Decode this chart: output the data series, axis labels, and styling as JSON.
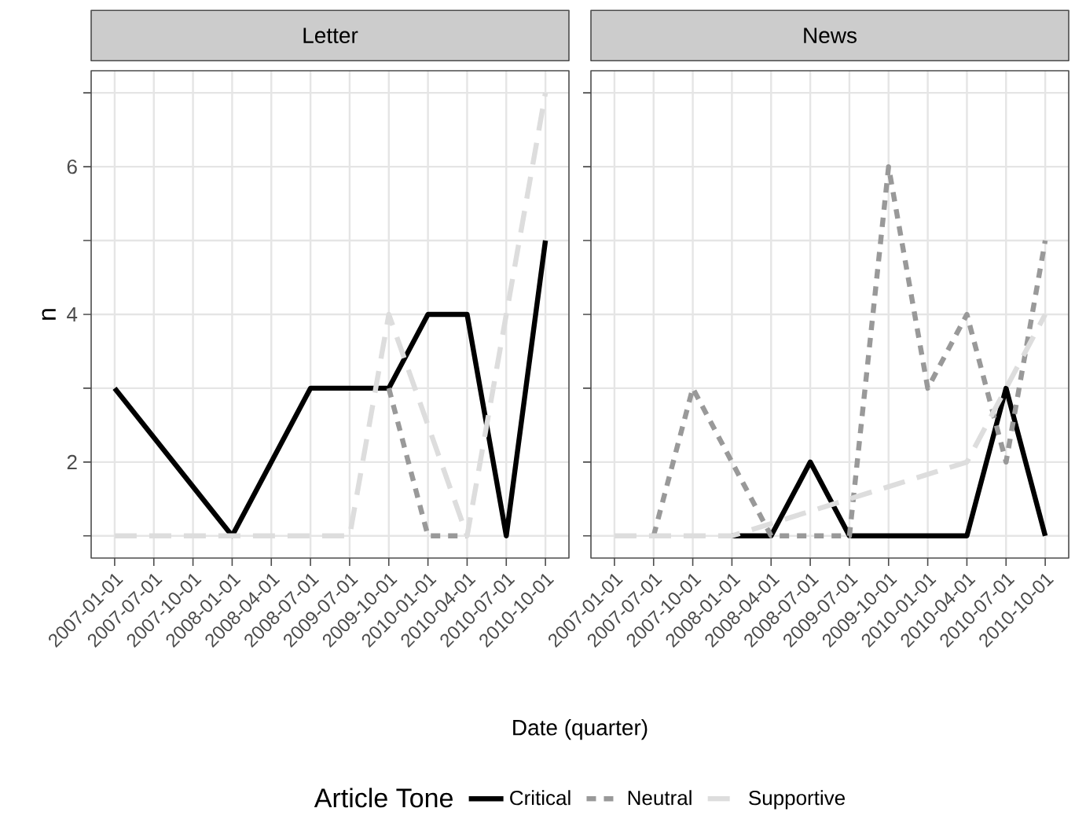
{
  "chart_data": [
    {
      "type": "line",
      "title": "Letter",
      "xlabel": "Date (quarter)",
      "ylabel": "n",
      "legend_title": "Article Tone",
      "legend": "bottom",
      "grid": true,
      "categories": [
        "2007-01-01",
        "2007-07-01",
        "2007-10-01",
        "2008-01-01",
        "2008-04-01",
        "2008-07-01",
        "2009-07-01",
        "2009-10-01",
        "2010-01-01",
        "2010-04-01",
        "2010-07-01",
        "2010-10-01"
      ],
      "ylim": [
        0.7,
        7.3
      ],
      "yticks": [
        {
          "value": 1,
          "label": null
        },
        2,
        {
          "value": 3,
          "label": null
        },
        4,
        {
          "value": 5,
          "label": null
        },
        6,
        {
          "value": 7,
          "label": null
        }
      ],
      "series": [
        {
          "name": "Critical",
          "color": "#000000",
          "line_style": "solid",
          "values": [
            3,
            null,
            null,
            1,
            null,
            3,
            3,
            3,
            4,
            4,
            1,
            5
          ]
        },
        {
          "name": "Neutral",
          "color": "#999999",
          "line_style": "dotted",
          "values": [
            null,
            null,
            null,
            null,
            null,
            null,
            null,
            3,
            1,
            1,
            null,
            null
          ]
        },
        {
          "name": "Supportive",
          "color": "#dddddd",
          "line_style": "dashed",
          "values": [
            1,
            1,
            1,
            1,
            1,
            1,
            1,
            4,
            null,
            1,
            null,
            7
          ]
        }
      ]
    },
    {
      "type": "line",
      "title": "News",
      "grid": true,
      "tick_labels": "x",
      "categories": [
        "2007-01-01",
        "2007-07-01",
        "2007-10-01",
        "2008-01-01",
        "2008-04-01",
        "2008-07-01",
        "2009-07-01",
        "2009-10-01",
        "2010-01-01",
        "2010-04-01",
        "2010-07-01",
        "2010-10-01"
      ],
      "ylim": [
        0.7,
        7.3
      ],
      "yticks": [
        {
          "value": 1,
          "label": null
        },
        2,
        {
          "value": 3,
          "label": null
        },
        4,
        {
          "value": 5,
          "label": null
        },
        6,
        {
          "value": 7,
          "label": null
        }
      ],
      "series": [
        {
          "color": "#000000",
          "line_style": "solid",
          "values": [
            null,
            null,
            null,
            1,
            1,
            2,
            1,
            1,
            1,
            1,
            3,
            1
          ]
        },
        {
          "color": "#999999",
          "line_style": "dotted",
          "values": [
            null,
            1,
            3,
            null,
            1,
            1,
            1,
            6,
            3,
            4,
            2,
            5
          ]
        },
        {
          "color": "#dddddd",
          "line_style": "dashed",
          "values": [
            1,
            1,
            1,
            1,
            null,
            null,
            null,
            null,
            null,
            2,
            3,
            4
          ]
        }
      ]
    }
  ]
}
